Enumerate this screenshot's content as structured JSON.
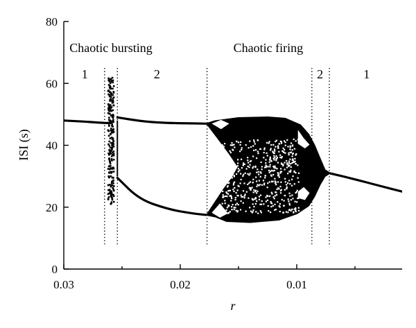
{
  "chart_data": {
    "type": "scatter",
    "title": "",
    "xlabel": "r",
    "ylabel": "ISI (s)",
    "xlim": [
      0.03,
      0.0007
    ],
    "ylim": [
      0,
      80
    ],
    "x_reversed": true,
    "x_ticks": [
      0.03,
      0.02,
      0.01
    ],
    "x_tick_labels": [
      "0.03",
      "0.02",
      "0.01"
    ],
    "y_ticks": [
      0,
      20,
      40,
      60,
      80
    ],
    "y_tick_labels": [
      "0",
      "20",
      "40",
      "60",
      "80"
    ],
    "grid": false,
    "legend": "none",
    "regions": [
      {
        "label": "Chaotic bursting",
        "x_start": 0.0265,
        "x_end": 0.0254
      },
      {
        "label": "Chaotic firing",
        "x_start": 0.0177,
        "x_end": 0.0072
      }
    ],
    "region_numbers": [
      {
        "label": "1",
        "x": 0.0282
      },
      {
        "label": "2",
        "x": 0.022
      },
      {
        "label": "2",
        "x": 0.008
      },
      {
        "label": "1",
        "x": 0.004
      }
    ],
    "dividers": [
      0.0265,
      0.0254,
      0.0177,
      0.0087,
      0.0072
    ],
    "series": [
      {
        "x": [
          0.03,
          0.028,
          0.0265,
          0.026
        ],
        "y": [
          48.0,
          47.6,
          47.2,
          47.2
        ]
      },
      {
        "x": [
          0.0254,
          0.023,
          0.021,
          0.0195,
          0.0178
        ],
        "y": [
          49.0,
          47.6,
          47.2,
          47.1,
          47.0
        ]
      },
      {
        "x": [
          0.0254,
          0.0235,
          0.021,
          0.019,
          0.0178
        ],
        "y": [
          29.5,
          22.5,
          19.3,
          18.0,
          17.5
        ]
      },
      {
        "x": [
          0.0072,
          0.005,
          0.003,
          0.0007
        ],
        "y": [
          31.0,
          29.0,
          27.0,
          24.8
        ]
      }
    ],
    "chaotic_bursting_band": {
      "x_range": [
        0.0262,
        0.0257
      ],
      "y_range": [
        21,
        62
      ]
    },
    "chaotic_firing_band": {
      "x_range": [
        0.0177,
        0.0087
      ],
      "y_range": [
        15,
        49
      ]
    }
  }
}
